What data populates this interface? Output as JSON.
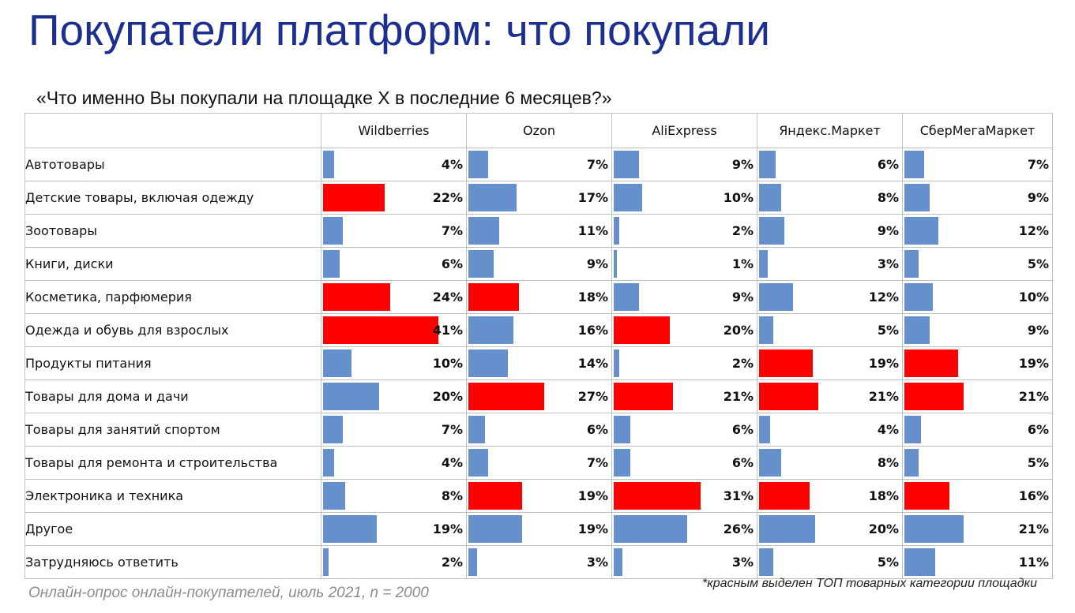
{
  "title": "Покупатели платформ: что покупали",
  "subtitle": "«Что именно Вы покупали на площадке X в последние 6 месяцев?»",
  "footnote": "*красным выделен ТОП товарных категории площадки",
  "source": "Онлайн-опрос онлайн-покупателей, июль 2021, n = 2000",
  "colors": {
    "normal": "#6590cc",
    "top": "#ff0000",
    "border": "#bfbfbf",
    "title": "#1c2f8f"
  },
  "chart_data": {
    "type": "bar",
    "orientation": "horizontal",
    "value_suffix": "%",
    "xlim": [
      0,
      41
    ],
    "categories": [
      "Автотовары",
      "Детские товары, включая одежду",
      "Зоотовары",
      "Книги, диски",
      "Косметика, парфюмерия",
      "Одежда и обувь для взрослых",
      "Продукты питания",
      "Товары для дома и дачи",
      "Товары для занятий спортом",
      "Товары для ремонта и строительства",
      "Электроника и техника",
      "Другое",
      "Затрудняюсь ответить"
    ],
    "series": [
      {
        "name": "Wildberries",
        "values": [
          4,
          22,
          7,
          6,
          24,
          41,
          10,
          20,
          7,
          4,
          8,
          19,
          2
        ],
        "top": [
          1,
          4,
          5
        ]
      },
      {
        "name": "Ozon",
        "values": [
          7,
          17,
          11,
          9,
          18,
          16,
          14,
          27,
          6,
          7,
          19,
          19,
          3
        ],
        "top": [
          4,
          7,
          10
        ]
      },
      {
        "name": "AliExpress",
        "values": [
          9,
          10,
          2,
          1,
          9,
          20,
          2,
          21,
          6,
          6,
          31,
          26,
          3
        ],
        "top": [
          5,
          7,
          10
        ]
      },
      {
        "name": "Яндекс.Маркет",
        "values": [
          6,
          8,
          9,
          3,
          12,
          5,
          19,
          21,
          4,
          8,
          18,
          20,
          5
        ],
        "top": [
          6,
          7,
          10
        ]
      },
      {
        "name": "СберМегаМаркет",
        "values": [
          7,
          9,
          12,
          5,
          10,
          9,
          19,
          21,
          6,
          5,
          16,
          21,
          11
        ],
        "top": [
          6,
          7,
          10
        ]
      }
    ]
  }
}
